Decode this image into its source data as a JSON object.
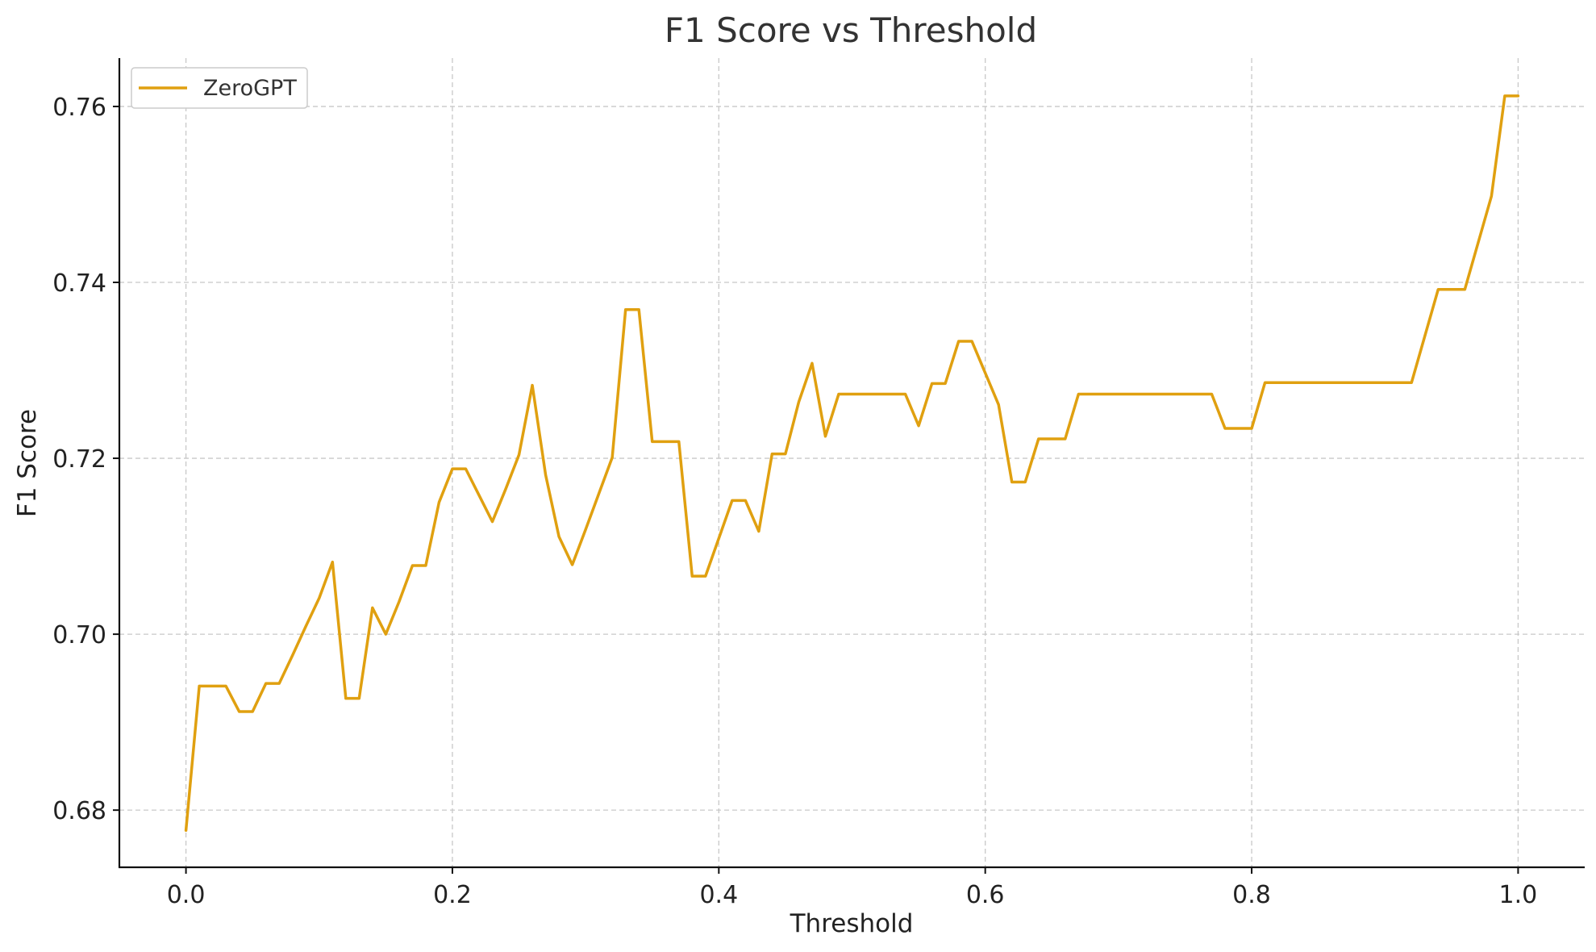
{
  "chart_data": {
    "type": "line",
    "title": "F1 Score vs Threshold",
    "xlabel": "Threshold",
    "ylabel": "F1 Score",
    "xlim": [
      -0.05,
      1.05
    ],
    "ylim": [
      0.6735,
      0.7655
    ],
    "xticks": [
      "0.0",
      "0.2",
      "0.4",
      "0.6",
      "0.8",
      "1.0"
    ],
    "yticks": [
      "0.68",
      "0.70",
      "0.72",
      "0.74",
      "0.76"
    ],
    "grid": true,
    "legend_position": "top-left",
    "series": [
      {
        "name": "ZeroGPT",
        "color": "#E0A010",
        "x": [
          0.0,
          0.01,
          0.02,
          0.03,
          0.04,
          0.05,
          0.06,
          0.07,
          0.08,
          0.09,
          0.1,
          0.11,
          0.12,
          0.13,
          0.14,
          0.15,
          0.16,
          0.17,
          0.18,
          0.19,
          0.2,
          0.21,
          0.22,
          0.23,
          0.24,
          0.25,
          0.26,
          0.27,
          0.28,
          0.29,
          0.3,
          0.31,
          0.32,
          0.33,
          0.34,
          0.35,
          0.36,
          0.37,
          0.38,
          0.39,
          0.4,
          0.41,
          0.42,
          0.43,
          0.44,
          0.45,
          0.46,
          0.47,
          0.48,
          0.49,
          0.5,
          0.51,
          0.52,
          0.53,
          0.54,
          0.55,
          0.56,
          0.57,
          0.58,
          0.59,
          0.6,
          0.61,
          0.62,
          0.63,
          0.64,
          0.65,
          0.66,
          0.67,
          0.68,
          0.69,
          0.7,
          0.71,
          0.72,
          0.73,
          0.74,
          0.75,
          0.76,
          0.77,
          0.78,
          0.79,
          0.8,
          0.81,
          0.82,
          0.83,
          0.84,
          0.85,
          0.86,
          0.87,
          0.88,
          0.89,
          0.9,
          0.91,
          0.92,
          0.93,
          0.94,
          0.95,
          0.96,
          0.97,
          0.98,
          0.99,
          1.0
        ],
        "y": [
          0.6777,
          0.6941,
          0.6941,
          0.6941,
          0.6912,
          0.6912,
          0.6944,
          0.6944,
          0.6976,
          0.7009,
          0.7041,
          0.7082,
          0.6927,
          0.6927,
          0.703,
          0.7,
          0.7037,
          0.7078,
          0.7078,
          0.715,
          0.7188,
          0.7188,
          0.7158,
          0.7128,
          0.7165,
          0.7204,
          0.7283,
          0.7181,
          0.7111,
          0.7079,
          0.7119,
          0.716,
          0.7201,
          0.7369,
          0.7369,
          0.7219,
          0.7219,
          0.7219,
          0.7066,
          0.7066,
          0.7109,
          0.7152,
          0.7152,
          0.7117,
          0.7205,
          0.7205,
          0.7264,
          0.7308,
          0.7225,
          0.7273,
          0.7273,
          0.7273,
          0.7273,
          0.7273,
          0.7273,
          0.7237,
          0.7285,
          0.7285,
          0.7333,
          0.7333,
          0.7297,
          0.7261,
          0.7173,
          0.7173,
          0.7222,
          0.7222,
          0.7222,
          0.7273,
          0.7273,
          0.7273,
          0.7273,
          0.7273,
          0.7273,
          0.7273,
          0.7273,
          0.7273,
          0.7273,
          0.7273,
          0.7234,
          0.7234,
          0.7234,
          0.7286,
          0.7286,
          0.7286,
          0.7286,
          0.7286,
          0.7286,
          0.7286,
          0.7286,
          0.7286,
          0.7286,
          0.7286,
          0.7286,
          0.7339,
          0.7392,
          0.7392,
          0.7392,
          0.7445,
          0.7498,
          0.7612,
          0.7612
        ]
      }
    ]
  }
}
